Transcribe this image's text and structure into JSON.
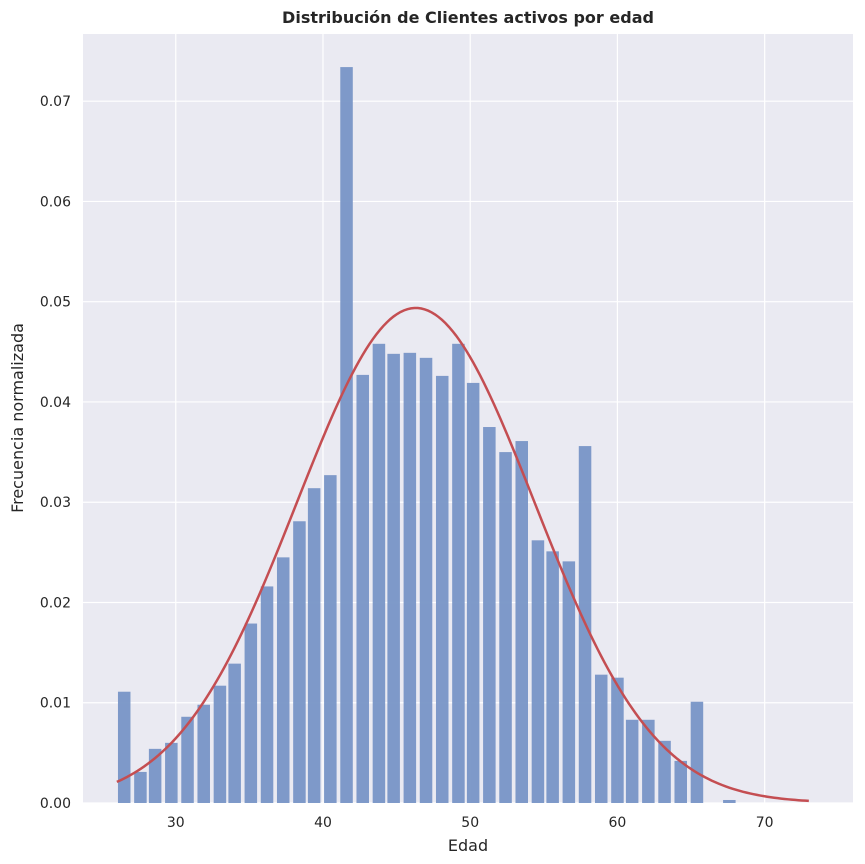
{
  "chart_data": {
    "type": "bar",
    "title": "Distribución de Clientes activos por edad",
    "xlabel": "Edad",
    "ylabel": "Frecuencia normalizada",
    "xlim": [
      23.7,
      76.0
    ],
    "ylim": [
      0,
      0.0767
    ],
    "x_ticks": [
      30,
      40,
      50,
      60,
      70
    ],
    "y_ticks": [
      0.0,
      0.01,
      0.02,
      0.03,
      0.04,
      0.05,
      0.06,
      0.07
    ],
    "x_tick_labels": [
      "30",
      "40",
      "50",
      "60",
      "70"
    ],
    "y_tick_labels": [
      "0.00",
      "0.01",
      "0.02",
      "0.03",
      "0.04",
      "0.05",
      "0.06",
      "0.07"
    ],
    "grid": true,
    "bar_width": 0.85,
    "series": [
      {
        "kind": "histogram",
        "color": "#7895c6",
        "x": [
          26.5,
          27.6,
          28.6,
          29.7,
          30.8,
          31.9,
          33.0,
          34.0,
          35.1,
          36.2,
          37.3,
          38.4,
          39.4,
          40.5,
          41.6,
          42.7,
          43.8,
          44.8,
          45.9,
          47.0,
          48.1,
          49.2,
          50.2,
          51.3,
          52.4,
          53.5,
          54.6,
          55.6,
          56.7,
          57.8,
          58.9,
          60.0,
          61.0,
          62.1,
          63.2,
          64.3,
          65.4,
          67.6
        ],
        "values": [
          0.0111,
          0.0031,
          0.0054,
          0.006,
          0.0086,
          0.0098,
          0.0117,
          0.0139,
          0.0179,
          0.0216,
          0.0245,
          0.0281,
          0.0314,
          0.0327,
          0.0734,
          0.0427,
          0.0458,
          0.0448,
          0.0449,
          0.0444,
          0.0426,
          0.0458,
          0.0419,
          0.0375,
          0.035,
          0.0361,
          0.0262,
          0.0251,
          0.0241,
          0.0356,
          0.0128,
          0.0125,
          0.0083,
          0.0083,
          0.0062,
          0.0042,
          0.0101,
          0.0003
        ]
      },
      {
        "kind": "normal_fit",
        "color": "#c44e52",
        "mean": 46.3,
        "std": 8.08,
        "x_range": [
          26.0,
          73.0
        ]
      }
    ]
  }
}
